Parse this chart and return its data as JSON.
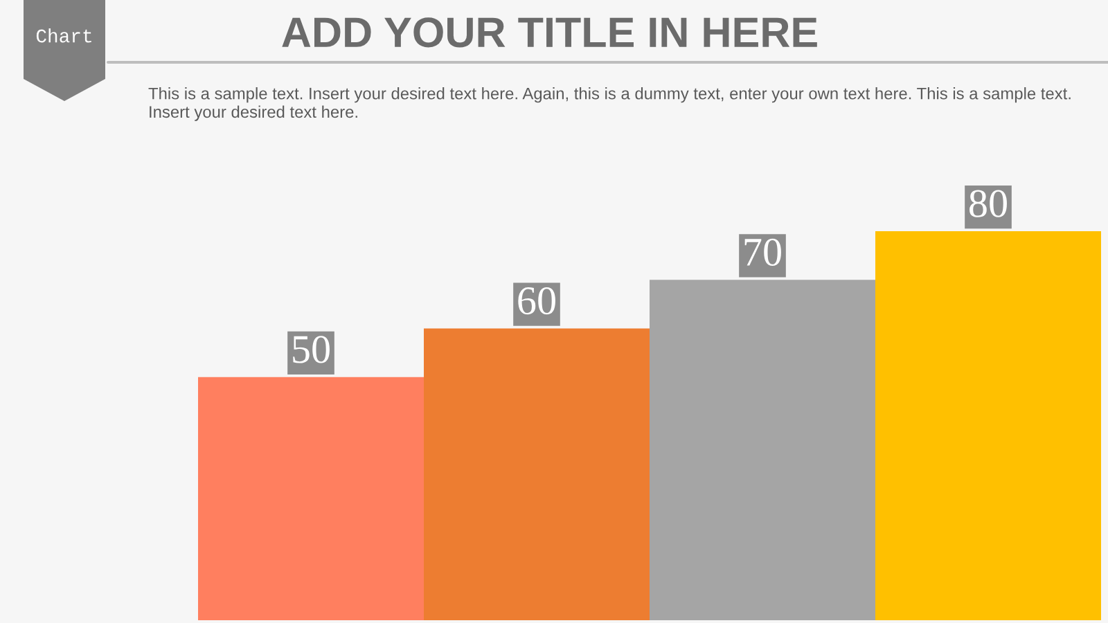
{
  "chart_data": {
    "type": "bar",
    "title": "ADD YOUR TITLE IN HERE",
    "subtitle": "This is a sample text. Insert your desired text here. Again, this is a dummy text, enter your own text here. This is a sample text. Insert your desired text here.",
    "annotations": [
      "Chart"
    ],
    "categories": [
      null,
      null,
      null,
      null
    ],
    "values": [
      50,
      60,
      70,
      80
    ],
    "colors": [
      "#ff7f5f",
      "#ed7d31",
      "#a5a5a5",
      "#ffc000"
    ],
    "data_labels": true
  }
}
